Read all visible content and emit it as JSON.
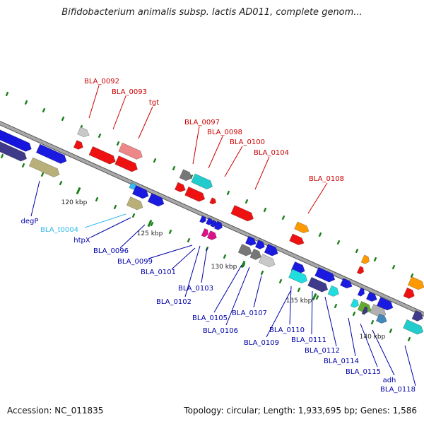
{
  "title": "Bifidobacterium animalis subsp. lactis AD011, complete genom...",
  "footer": {
    "accession": "Accession: NC_011835",
    "topology": "Topology: circular; Length: 1,933,695 bp; Genes: 1,586"
  },
  "colors": {
    "red_label": "#cc0000",
    "blue_label": "#0000aa",
    "cyan_label": "#33bbee",
    "backbone": "#8c8c8c",
    "tick": "#1a7f1a"
  },
  "scale_labels": [
    "120 kbp",
    "125 kbp",
    "130 kbp",
    "135 kbp",
    "140 kbp"
  ],
  "top_labels": [
    "BLA_0092",
    "BLA_0093",
    "tgt",
    "BLA_0097",
    "BLA_0098",
    "BLA_0100",
    "BLA_0104",
    "BLA_0108"
  ],
  "bottom_labels": [
    "degP",
    "BLA_t0004",
    "htpX",
    "BLA_0096",
    "BLA_0099",
    "BLA_0101",
    "BLA_0102",
    "BLA_0103",
    "BLA_0105",
    "BLA_0106",
    "BLA_0107",
    "BLA_0109",
    "BLA_0110",
    "BLA_0111",
    "BLA_0112",
    "BLA_0114",
    "BLA_0115",
    "adh",
    "BLA_0118"
  ]
}
